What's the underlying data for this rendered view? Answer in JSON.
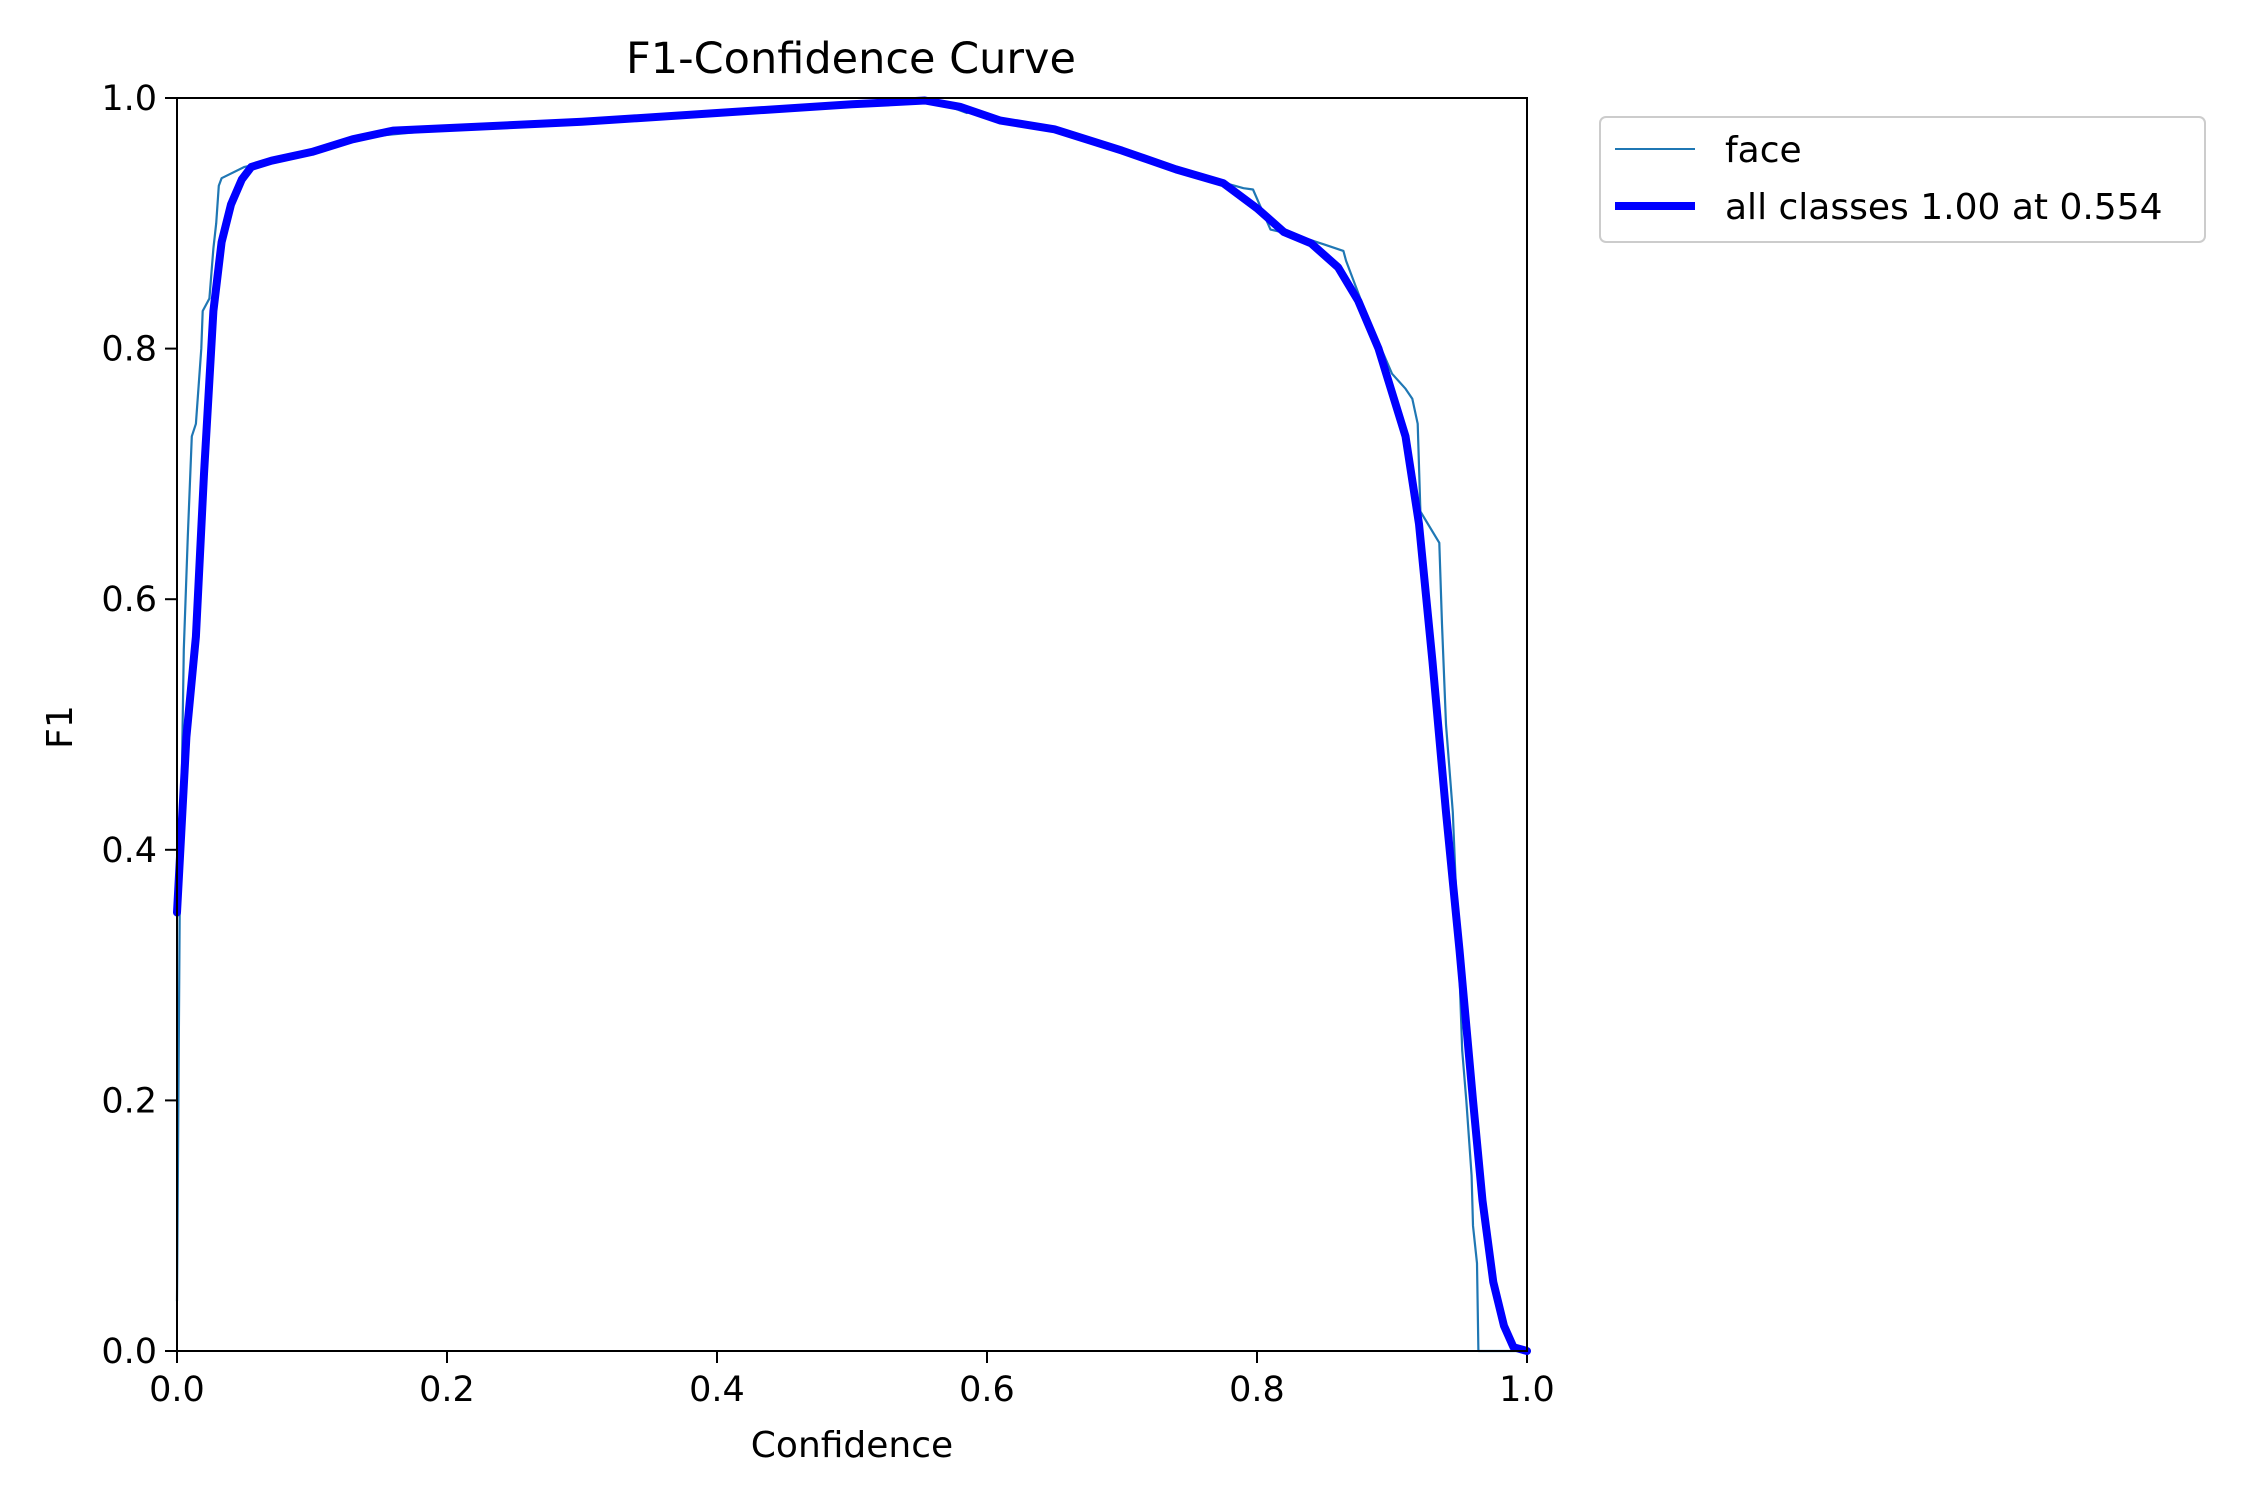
{
  "chart_data": {
    "type": "line",
    "title": "F1-Confidence Curve",
    "xlabel": "Confidence",
    "ylabel": "F1",
    "xlim": [
      0,
      1
    ],
    "ylim": [
      0,
      1
    ],
    "xticks": [
      "0.0",
      "0.2",
      "0.4",
      "0.6",
      "0.8",
      "1.0"
    ],
    "yticks": [
      "0.0",
      "0.2",
      "0.4",
      "0.6",
      "0.8",
      "1.0"
    ],
    "grid": false,
    "legend_position": "outside-top-right",
    "series": [
      {
        "name": "face",
        "color": "#1f77b4",
        "style": "thin",
        "points": [
          [
            0.0,
            0.04
          ],
          [
            0.002,
            0.35
          ],
          [
            0.005,
            0.56
          ],
          [
            0.008,
            0.65
          ],
          [
            0.011,
            0.73
          ],
          [
            0.014,
            0.74
          ],
          [
            0.016,
            0.77
          ],
          [
            0.018,
            0.8
          ],
          [
            0.019,
            0.83
          ],
          [
            0.024,
            0.84
          ],
          [
            0.027,
            0.88
          ],
          [
            0.029,
            0.9
          ],
          [
            0.031,
            0.93
          ],
          [
            0.033,
            0.936
          ],
          [
            0.05,
            0.945
          ],
          [
            0.08,
            0.952
          ],
          [
            0.1,
            0.957
          ],
          [
            0.15,
            0.97
          ],
          [
            0.2,
            0.975
          ],
          [
            0.3,
            0.98
          ],
          [
            0.4,
            0.988
          ],
          [
            0.5,
            0.995
          ],
          [
            0.554,
            1.0
          ],
          [
            0.57,
            0.994
          ],
          [
            0.585,
            0.988
          ],
          [
            0.59,
            0.99
          ],
          [
            0.61,
            0.982
          ],
          [
            0.65,
            0.975
          ],
          [
            0.7,
            0.96
          ],
          [
            0.75,
            0.94
          ],
          [
            0.79,
            0.928
          ],
          [
            0.797,
            0.927
          ],
          [
            0.81,
            0.895
          ],
          [
            0.83,
            0.89
          ],
          [
            0.85,
            0.883
          ],
          [
            0.864,
            0.878
          ],
          [
            0.866,
            0.87
          ],
          [
            0.88,
            0.83
          ],
          [
            0.9,
            0.78
          ],
          [
            0.91,
            0.768
          ],
          [
            0.915,
            0.76
          ],
          [
            0.919,
            0.74
          ],
          [
            0.921,
            0.67
          ],
          [
            0.935,
            0.645
          ],
          [
            0.937,
            0.58
          ],
          [
            0.94,
            0.5
          ],
          [
            0.945,
            0.43
          ],
          [
            0.95,
            0.3
          ],
          [
            0.952,
            0.24
          ],
          [
            0.955,
            0.2
          ],
          [
            0.959,
            0.14
          ],
          [
            0.96,
            0.1
          ],
          [
            0.963,
            0.07
          ],
          [
            0.964,
            0.0
          ],
          [
            0.975,
            0.0
          ],
          [
            1.0,
            0.0
          ]
        ]
      },
      {
        "name": "all classes 1.00 at 0.554",
        "color": "#0000ff",
        "style": "thick",
        "points": [
          [
            0.0,
            0.35
          ],
          [
            0.007,
            0.49
          ],
          [
            0.014,
            0.57
          ],
          [
            0.02,
            0.7
          ],
          [
            0.027,
            0.83
          ],
          [
            0.033,
            0.885
          ],
          [
            0.04,
            0.915
          ],
          [
            0.048,
            0.935
          ],
          [
            0.055,
            0.945
          ],
          [
            0.07,
            0.95
          ],
          [
            0.1,
            0.957
          ],
          [
            0.13,
            0.967
          ],
          [
            0.16,
            0.974
          ],
          [
            0.2,
            0.976
          ],
          [
            0.3,
            0.981
          ],
          [
            0.4,
            0.988
          ],
          [
            0.5,
            0.995
          ],
          [
            0.554,
            0.998
          ],
          [
            0.58,
            0.993
          ],
          [
            0.61,
            0.982
          ],
          [
            0.65,
            0.975
          ],
          [
            0.7,
            0.958
          ],
          [
            0.74,
            0.943
          ],
          [
            0.775,
            0.932
          ],
          [
            0.8,
            0.912
          ],
          [
            0.82,
            0.893
          ],
          [
            0.84,
            0.884
          ],
          [
            0.86,
            0.865
          ],
          [
            0.875,
            0.838
          ],
          [
            0.89,
            0.8
          ],
          [
            0.9,
            0.765
          ],
          [
            0.91,
            0.73
          ],
          [
            0.92,
            0.66
          ],
          [
            0.93,
            0.55
          ],
          [
            0.94,
            0.43
          ],
          [
            0.95,
            0.32
          ],
          [
            0.96,
            0.2
          ],
          [
            0.967,
            0.12
          ],
          [
            0.975,
            0.055
          ],
          [
            0.983,
            0.02
          ],
          [
            0.99,
            0.003
          ],
          [
            1.0,
            0.0
          ]
        ]
      }
    ]
  }
}
